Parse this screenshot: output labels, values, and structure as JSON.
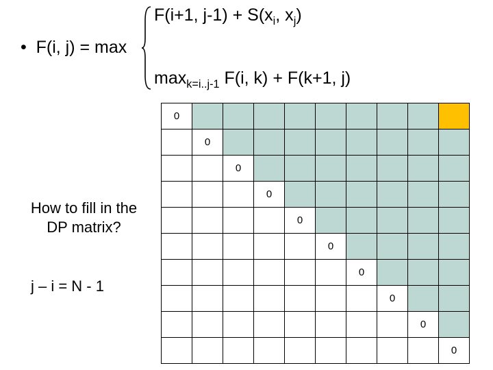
{
  "formula": {
    "top_html": "F(i+1, j-1) + S(x<span class='subsc'>i</span>, x<span class='subsc'>j</span>)",
    "mid_html": "•&nbsp; F(i, j) = max",
    "bot_html": "max<span class='subsc'>k=i..j-1</span> F(i, k) + F(k+1, j)"
  },
  "question_html": "How to fill in the<br>DP matrix?",
  "jline": "j – i = N - 1",
  "grid": {
    "size": 10,
    "colors": {
      "white": "#ffffff",
      "shade": "#bdd7d3",
      "highlight": "#ffc000"
    },
    "diag_value": "0",
    "diag_font_size": 15
  }
}
